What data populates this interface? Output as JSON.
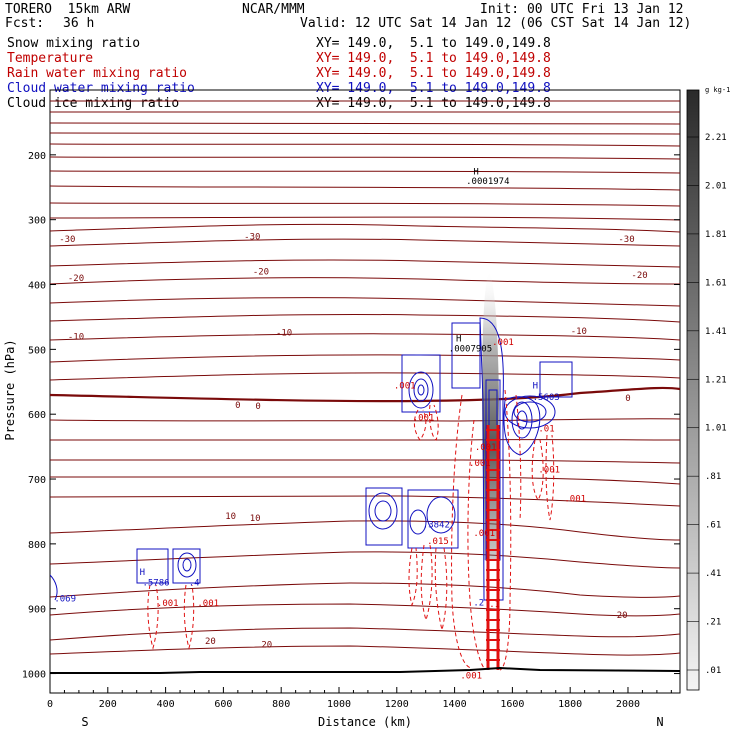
{
  "header": {
    "model": "TORERO  15km ARW",
    "center": "NCAR/MMM",
    "init": "Init: 00 UTC Fri 13 Jan 12",
    "fcst_label": "Fcst:",
    "fcst_value": "36 h",
    "valid": "Valid: 12 UTC Sat 14 Jan 12 (06 CST Sat 14 Jan 12)"
  },
  "fields": [
    {
      "name": "Snow mixing ratio",
      "xy": "XY= 149.0,  5.1 to 149.0,149.8",
      "color": "#000000"
    },
    {
      "name": "Temperature",
      "xy": "XY= 149.0,  5.1 to 149.0,149.8",
      "color": "#c00000"
    },
    {
      "name": "Rain water mixing ratio",
      "xy": "XY= 149.0,  5.1 to 149.0,149.8",
      "color": "#c00000"
    },
    {
      "name": "Cloud water mixing ratio",
      "xy": "XY= 149.0,  5.1 to 149.0,149.8",
      "color": "#1010c0"
    },
    {
      "name": "Cloud ice mixing ratio",
      "xy": "XY= 149.0,  5.1 to 149.0,149.8",
      "color": "#000000"
    }
  ],
  "chart_data": {
    "type": "cross-section contour",
    "xlabel": "Distance (km)",
    "ylabel": "Pressure (hPa)",
    "xlim": [
      0,
      2180
    ],
    "ylim": [
      100,
      1030
    ],
    "x_ticks": [
      "0",
      "200",
      "400",
      "600",
      "800",
      "1000",
      "1200",
      "1400",
      "1600",
      "1800",
      "2000"
    ],
    "y_ticks": [
      "200",
      "300",
      "400",
      "500",
      "600",
      "700",
      "800",
      "900",
      "1000"
    ],
    "x_end_labels": [
      "S",
      "N"
    ],
    "colorbar_unit": "g kg-1",
    "colorbar_labels": [
      "2.21",
      "2.01",
      "1.81",
      "1.61",
      "1.41",
      "1.21",
      "1.01",
      ".81",
      ".61",
      ".41",
      ".21",
      ".01"
    ],
    "temperature_labels": [
      {
        "x": 60,
        "p": 330,
        "text": "-30"
      },
      {
        "x": 700,
        "p": 326,
        "text": "-30"
      },
      {
        "x": 1995,
        "p": 330,
        "text": "-30"
      },
      {
        "x": 90,
        "p": 390,
        "text": "-20"
      },
      {
        "x": 730,
        "p": 380,
        "text": "-20"
      },
      {
        "x": 2040,
        "p": 385,
        "text": "-20"
      },
      {
        "x": 90,
        "p": 480,
        "text": "-10"
      },
      {
        "x": 810,
        "p": 474,
        "text": "-10"
      },
      {
        "x": 1830,
        "p": 472,
        "text": "-10"
      },
      {
        "x": 650,
        "p": 586,
        "text": "0"
      },
      {
        "x": 720,
        "p": 587,
        "text": "0"
      },
      {
        "x": 2000,
        "p": 575,
        "text": "0"
      },
      {
        "x": 625,
        "p": 757,
        "text": "10"
      },
      {
        "x": 710,
        "p": 760,
        "text": "10"
      },
      {
        "x": 555,
        "p": 950,
        "text": "20"
      },
      {
        "x": 750,
        "p": 955,
        "text": "20"
      },
      {
        "x": 1980,
        "p": 910,
        "text": "20"
      }
    ],
    "annotations": [
      {
        "x": 1465,
        "p": 230,
        "text": "H"
      },
      {
        "x": 1440,
        "p": 245,
        "text": ".0001974"
      },
      {
        "x": 1405,
        "p": 488,
        "text": "H"
      },
      {
        "x": 1380,
        "p": 503,
        "text": ".0007905"
      },
      {
        "x": 1530,
        "p": 493,
        "text": ".001"
      },
      {
        "x": 1190,
        "p": 560,
        "text": ".001"
      },
      {
        "x": 1255,
        "p": 610,
        "text": ".001"
      },
      {
        "x": 1670,
        "p": 560,
        "text": "H"
      },
      {
        "x": 1670,
        "p": 578,
        "text": ".5603"
      },
      {
        "x": 1690,
        "p": 627,
        "text": ".01"
      },
      {
        "x": 1450,
        "p": 680,
        "text": ".001"
      },
      {
        "x": 1470,
        "p": 655,
        "text": ".001"
      },
      {
        "x": 1690,
        "p": 690,
        "text": ".001"
      },
      {
        "x": 1780,
        "p": 735,
        "text": ".001"
      },
      {
        "x": 1290,
        "p": 775,
        "text": ".3842"
      },
      {
        "x": 1305,
        "p": 800,
        "text": ".015"
      },
      {
        "x": 1465,
        "p": 788,
        "text": ".001"
      },
      {
        "x": 1465,
        "p": 895,
        "text": ".2"
      },
      {
        "x": 1520,
        "p": 897,
        "text": ".1"
      },
      {
        "x": 310,
        "p": 848,
        "text": "H"
      },
      {
        "x": 320,
        "p": 864,
        "text": ".5786"
      },
      {
        "x": 480,
        "p": 864,
        "text": ".4"
      },
      {
        "x": 15,
        "p": 889,
        "text": ".069"
      },
      {
        "x": 370,
        "p": 896,
        "text": ".001"
      },
      {
        "x": 510,
        "p": 896,
        "text": ".001"
      },
      {
        "x": 1420,
        "p": 1008,
        "text": ".001"
      }
    ]
  }
}
